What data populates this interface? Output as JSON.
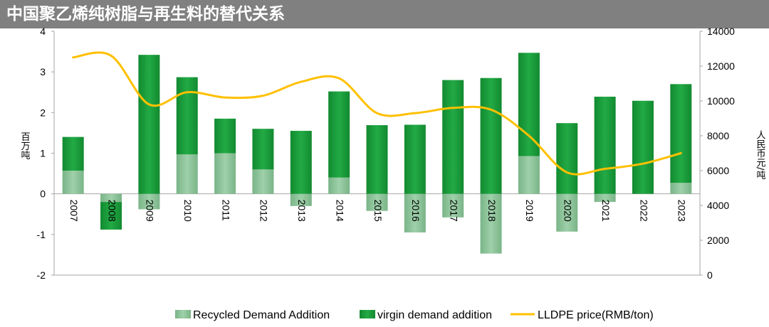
{
  "title": "中国聚乙烯纯树脂与再生料的替代关系",
  "chart_data": {
    "type": "bar",
    "categories": [
      "2007",
      "2008",
      "2009",
      "2010",
      "2011",
      "2012",
      "2013",
      "2014",
      "2015",
      "2016",
      "2017",
      "2018",
      "2019",
      "2020",
      "2021",
      "2022",
      "2023"
    ],
    "series": [
      {
        "name": "Recycled Demand Addition",
        "kind": "bar",
        "axis": "left",
        "color": "#8fc59c",
        "values": [
          0.57,
          -0.2,
          -0.38,
          0.97,
          1.0,
          0.6,
          -0.3,
          0.4,
          -0.42,
          -0.95,
          -0.58,
          -1.47,
          0.93,
          -0.93,
          -0.2,
          0.0,
          0.27
        ]
      },
      {
        "name": "virgin demand addition",
        "kind": "bar",
        "axis": "left",
        "color": "#1a9a3a",
        "values": [
          0.83,
          -0.68,
          3.42,
          1.9,
          0.85,
          1.0,
          1.55,
          2.12,
          1.69,
          1.7,
          2.8,
          2.85,
          2.54,
          1.74,
          2.39,
          2.29,
          2.43
        ]
      },
      {
        "name": "LLDPE price(RMB/ton)",
        "kind": "line",
        "axis": "right",
        "color": "#ffc000",
        "values": [
          12500,
          12600,
          9800,
          10500,
          10200,
          10300,
          11100,
          11300,
          9300,
          9300,
          9600,
          9500,
          8000,
          5900,
          6100,
          6400,
          7000
        ]
      }
    ],
    "y_left": {
      "label": "百万吨",
      "ylim": [
        -2,
        4
      ],
      "ticks": [
        -2,
        -1,
        0,
        1,
        2,
        3,
        4
      ]
    },
    "y_right": {
      "label": "人民币元/吨",
      "ylim": [
        0,
        14000
      ],
      "ticks": [
        0,
        2000,
        4000,
        6000,
        8000,
        10000,
        12000,
        14000
      ]
    },
    "grid": false,
    "legend_position": "bottom"
  }
}
